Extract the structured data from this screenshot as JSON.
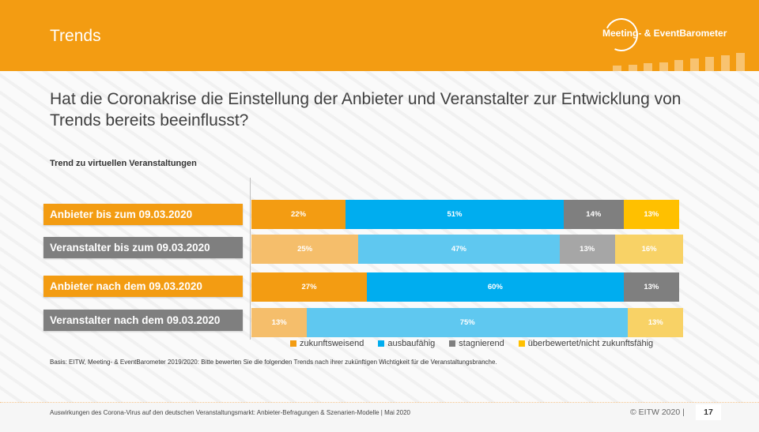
{
  "header": {
    "title": "Trends",
    "logo_text": "Meeting- & EventBarometer",
    "logo_bar_levels": [
      0.3,
      0.36,
      0.42,
      0.5,
      0.6,
      0.7,
      0.78,
      0.86,
      1.0
    ]
  },
  "question": "Hat die Coronakrise die Einstellung der Anbieter und Veranstalter zur Entwicklung von Trends bereits beeinflusst?",
  "chart_data": {
    "type": "bar",
    "orientation": "horizontal",
    "stacked": true,
    "title": "Trend zu virtuellen Veranstaltungen",
    "categories": [
      "Anbieter bis zum 09.03.2020",
      "Veranstalter bis zum 09.03.2020",
      "Anbieter nach dem 09.03.2020",
      "Veranstalter nach dem 09.03.2020"
    ],
    "category_colors": [
      "#f39c12",
      "#7f7f7f",
      "#f39c12",
      "#7f7f7f"
    ],
    "series": [
      {
        "name": "zukunftsweisend",
        "values": [
          22,
          25,
          27,
          13
        ],
        "colors": [
          "#f39c12",
          "#f5be6b",
          "#f39c12",
          "#f5be6b"
        ]
      },
      {
        "name": "ausbaufähig",
        "values": [
          51,
          47,
          60,
          75
        ],
        "colors": [
          "#00adef",
          "#5fc8f0",
          "#00adef",
          "#5fc8f0"
        ]
      },
      {
        "name": "stagnierend",
        "values": [
          14,
          13,
          13,
          0
        ],
        "colors": [
          "#7f7f7f",
          "#a6a6a6",
          "#7f7f7f",
          "#a6a6a6"
        ]
      },
      {
        "name": "überbewertet/nicht zukunftsfähig",
        "values": [
          13,
          16,
          0,
          13
        ],
        "colors": [
          "#ffc000",
          "#f8d266",
          "#ffc000",
          "#f8d266"
        ]
      }
    ],
    "legend": {
      "position": "bottom",
      "items": [
        {
          "label": "zukunftsweisend",
          "color": "#f39c12"
        },
        {
          "label": "ausbaufähig",
          "color": "#00adef"
        },
        {
          "label": "stagnierend",
          "color": "#7f7f7f"
        },
        {
          "label": "überbewertet/nicht zukunftsfähig",
          "color": "#ffc000"
        }
      ]
    },
    "xlim": [
      0,
      100
    ],
    "value_suffix": "%"
  },
  "basis": "Basis: EITW, Meeting- & EventBarometer 2019/2020: Bitte bewerten Sie die folgenden Trends nach ihrer zukünftigen Wichtigkeit für die Veranstaltungsbranche.",
  "footer": {
    "text": "Auswirkungen des Corona-Virus auf den deutschen Veranstaltungsmarkt: Anbieter-Befragungen & Szenarien-Modelle | Mai 2020",
    "copyright": "© EITW 2020 |",
    "page_number": "17"
  }
}
